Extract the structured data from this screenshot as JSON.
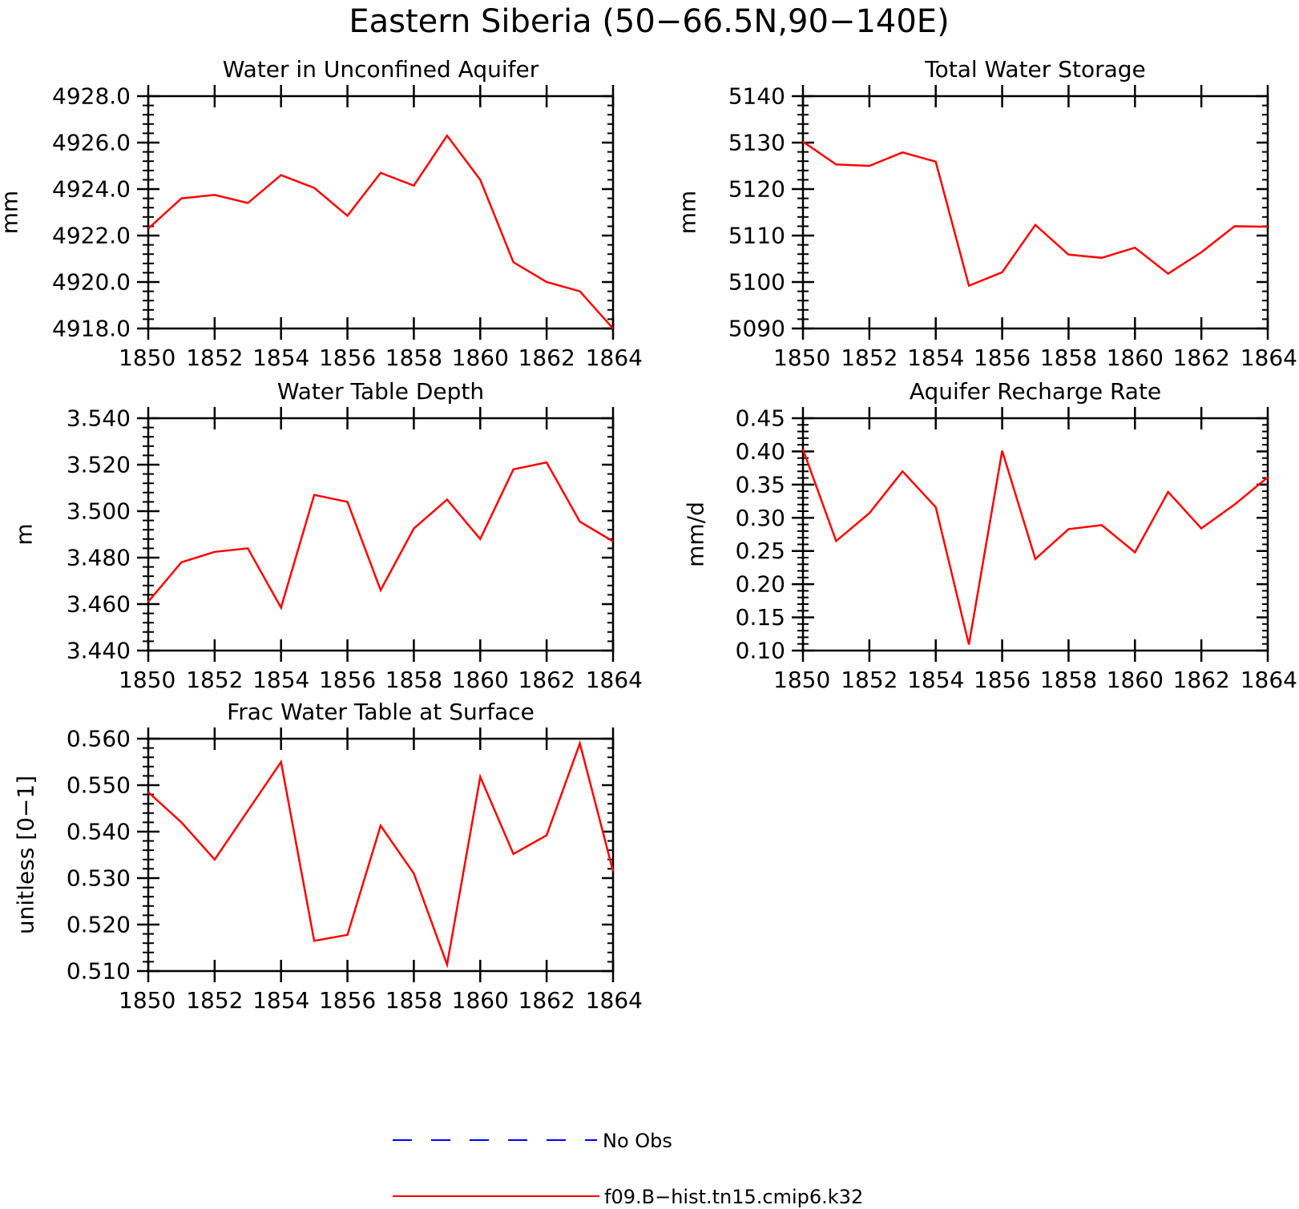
{
  "title": "Eastern Siberia (50−66.5N,90−140E)",
  "colors": {
    "model": "#ff0000",
    "obs": "#0000ff",
    "axes": "#000000"
  },
  "legend": [
    {
      "label": "No Obs",
      "style": "dashed",
      "color": "#0000ff"
    },
    {
      "label": "f09.B−hist.tn15.cmip6.k32",
      "style": "solid",
      "color": "#ff0000"
    }
  ],
  "chart_data": [
    {
      "type": "line",
      "title": "Water in Unconfined Aquifer",
      "ylabel": "mm",
      "ylim": [
        4918,
        4928
      ],
      "yticks": [
        "4918.0",
        "4920.0",
        "4922.0",
        "4924.0",
        "4926.0",
        "4928.0"
      ],
      "xlim": [
        1850,
        1864
      ],
      "xticks": [
        "1850",
        "1852",
        "1854",
        "1856",
        "1858",
        "1860",
        "1862",
        "1864"
      ],
      "x": [
        1850,
        1851,
        1852,
        1853,
        1854,
        1855,
        1856,
        1857,
        1858,
        1859,
        1860,
        1861,
        1862,
        1863,
        1864
      ],
      "series": [
        {
          "values": [
            4922.3,
            4923.6,
            4923.75,
            4923.4,
            4924.6,
            4924.05,
            4922.85,
            4924.7,
            4924.15,
            4926.3,
            4924.4,
            4920.85,
            4920.0,
            4919.6,
            4918.0
          ]
        }
      ]
    },
    {
      "type": "line",
      "title": "Total Water Storage",
      "ylabel": "mm",
      "ylim": [
        5090,
        5140
      ],
      "yticks": [
        "5090",
        "5100",
        "5110",
        "5120",
        "5130",
        "5140"
      ],
      "xlim": [
        1850,
        1864
      ],
      "xticks": [
        "1850",
        "1852",
        "1854",
        "1856",
        "1858",
        "1860",
        "1862",
        "1864"
      ],
      "x": [
        1850,
        1851,
        1852,
        1853,
        1854,
        1855,
        1856,
        1857,
        1858,
        1859,
        1860,
        1861,
        1862,
        1863,
        1864
      ],
      "series": [
        {
          "values": [
            5130.2,
            5125.3,
            5125.0,
            5127.9,
            5125.9,
            5099.2,
            5102.1,
            5112.3,
            5105.9,
            5105.2,
            5107.4,
            5101.8,
            5106.4,
            5112.0,
            5111.9
          ]
        }
      ]
    },
    {
      "type": "line",
      "title": "Water Table Depth",
      "ylabel": "m",
      "ylim": [
        3.44,
        3.54
      ],
      "yticks": [
        "3.440",
        "3.460",
        "3.480",
        "3.500",
        "3.520",
        "3.540"
      ],
      "xlim": [
        1850,
        1864
      ],
      "xticks": [
        "1850",
        "1852",
        "1854",
        "1856",
        "1858",
        "1860",
        "1862",
        "1864"
      ],
      "x": [
        1850,
        1851,
        1852,
        1853,
        1854,
        1855,
        1856,
        1857,
        1858,
        1859,
        1860,
        1861,
        1862,
        1863,
        1864
      ],
      "series": [
        {
          "values": [
            3.461,
            3.478,
            3.4825,
            3.484,
            3.4585,
            3.507,
            3.504,
            3.466,
            3.4925,
            3.505,
            3.488,
            3.518,
            3.521,
            3.4955,
            3.487
          ]
        }
      ]
    },
    {
      "type": "line",
      "title": "Aquifer Recharge Rate",
      "ylabel": "mm/d",
      "ylim": [
        0.1,
        0.45
      ],
      "yticks": [
        "0.10",
        "0.15",
        "0.20",
        "0.25",
        "0.30",
        "0.35",
        "0.40",
        "0.45"
      ],
      "xlim": [
        1850,
        1864
      ],
      "xticks": [
        "1850",
        "1852",
        "1854",
        "1856",
        "1858",
        "1860",
        "1862",
        "1864"
      ],
      "x": [
        1850,
        1851,
        1852,
        1853,
        1854,
        1855,
        1856,
        1857,
        1858,
        1859,
        1860,
        1861,
        1862,
        1863,
        1864
      ],
      "series": [
        {
          "values": [
            0.403,
            0.265,
            0.307,
            0.37,
            0.316,
            0.109,
            0.401,
            0.238,
            0.283,
            0.289,
            0.248,
            0.339,
            0.284,
            0.32,
            0.361
          ]
        }
      ]
    },
    {
      "type": "line",
      "title": "Frac Water Table at Surface",
      "ylabel": "unitless [0−1]",
      "ylim": [
        0.51,
        0.56
      ],
      "yticks": [
        "0.510",
        "0.520",
        "0.530",
        "0.540",
        "0.550",
        "0.560"
      ],
      "xlim": [
        1850,
        1864
      ],
      "xticks": [
        "1850",
        "1852",
        "1854",
        "1856",
        "1858",
        "1860",
        "1862",
        "1864"
      ],
      "x": [
        1850,
        1851,
        1852,
        1853,
        1854,
        1855,
        1856,
        1857,
        1858,
        1859,
        1860,
        1861,
        1862,
        1863,
        1864
      ],
      "series": [
        {
          "values": [
            0.5485,
            0.542,
            0.534,
            0.5445,
            0.555,
            0.5165,
            0.5178,
            0.5413,
            0.531,
            0.5114,
            0.5518,
            0.5352,
            0.5392,
            0.559,
            0.5315
          ]
        }
      ]
    }
  ]
}
